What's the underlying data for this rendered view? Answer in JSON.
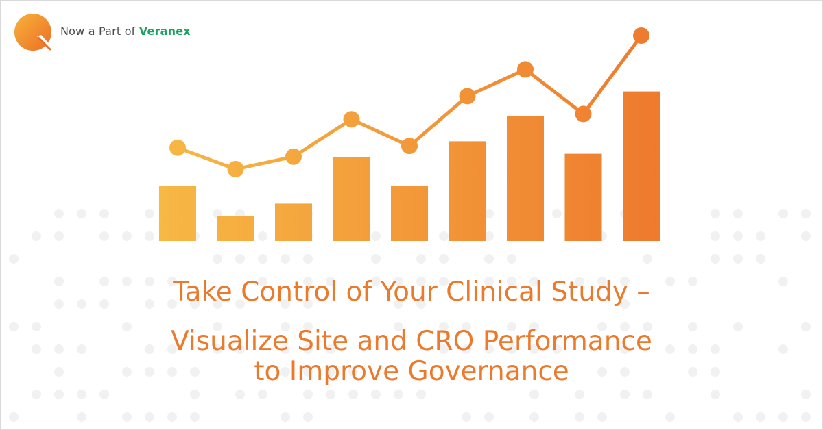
{
  "logo": {
    "prefix": "Now a Part of ",
    "brand": "Veranex",
    "brand_color": "#1aa260",
    "mark_icon": "q-speech-bubble-icon",
    "mark_color": "#f5a13a"
  },
  "headline": {
    "line1": "Take Control of Your Clinical Study –",
    "line2": "Visualize Site and CRO Performance",
    "line3": "to Improve Governance",
    "color": "#ec7a2c"
  },
  "chart_data": {
    "type": "bar",
    "categories": [
      "",
      "",
      "",
      "",
      "",
      "",
      "",
      "",
      ""
    ],
    "series": [
      {
        "kind": "bar",
        "values": [
          3.1,
          1.4,
          2.1,
          4.7,
          3.1,
          5.6,
          7.0,
          4.9,
          8.4
        ]
      },
      {
        "kind": "line",
        "values": [
          6.7,
          5.5,
          6.2,
          8.3,
          6.8,
          9.6,
          11.1,
          8.6,
          13.0
        ]
      }
    ],
    "title": "",
    "xlabel": "",
    "ylabel": "",
    "grid": false,
    "legend": "none",
    "colors": {
      "start": "#f7b844",
      "end": "#ee7a2e"
    }
  }
}
